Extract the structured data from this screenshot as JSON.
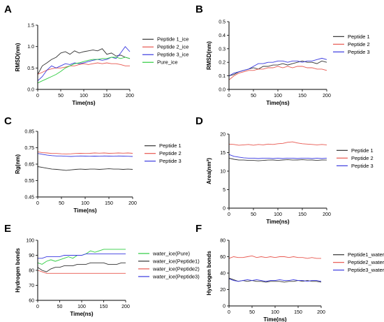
{
  "chart_data": [
    {
      "panel": "A",
      "type": "line",
      "xlabel": "Time(ns)",
      "ylabel": "RMSD(nm)",
      "xlim": [
        0,
        200
      ],
      "ylim": [
        0.0,
        1.5
      ],
      "xticks": [
        "0",
        "50",
        "100",
        "150",
        "200"
      ],
      "yticks": [
        "0.0",
        "0.5",
        "1.0",
        "1.5"
      ],
      "legend_position": "right",
      "series": [
        {
          "name": "Peptide 1_ice",
          "color": "#333333",
          "x": [
            0,
            10,
            20,
            30,
            40,
            50,
            60,
            70,
            80,
            90,
            100,
            110,
            120,
            130,
            140,
            150,
            160,
            170,
            180,
            190,
            200
          ],
          "y": [
            0.35,
            0.55,
            0.62,
            0.7,
            0.75,
            0.85,
            0.88,
            0.82,
            0.9,
            0.85,
            0.88,
            0.9,
            0.92,
            0.9,
            0.95,
            0.82,
            0.85,
            0.78,
            0.8,
            0.75,
            0.72
          ]
        },
        {
          "name": "Peptide 2_ice",
          "color": "#e8574f",
          "x": [
            0,
            10,
            20,
            30,
            40,
            50,
            60,
            70,
            80,
            90,
            100,
            110,
            120,
            130,
            140,
            150,
            160,
            170,
            180,
            190,
            200
          ],
          "y": [
            0.35,
            0.4,
            0.45,
            0.48,
            0.5,
            0.5,
            0.52,
            0.55,
            0.55,
            0.58,
            0.6,
            0.58,
            0.6,
            0.62,
            0.6,
            0.62,
            0.6,
            0.6,
            0.58,
            0.55,
            0.55
          ]
        },
        {
          "name": "Peptide 3_ice",
          "color": "#3a3ae0",
          "x": [
            0,
            10,
            20,
            30,
            40,
            50,
            60,
            70,
            80,
            90,
            100,
            110,
            120,
            130,
            140,
            150,
            160,
            170,
            180,
            190,
            200
          ],
          "y": [
            0.2,
            0.3,
            0.45,
            0.55,
            0.5,
            0.55,
            0.6,
            0.58,
            0.62,
            0.6,
            0.62,
            0.65,
            0.68,
            0.7,
            0.68,
            0.7,
            0.75,
            0.72,
            0.85,
            1.0,
            0.88
          ]
        },
        {
          "name": "Pure_ice",
          "color": "#2ecc40",
          "x": [
            0,
            10,
            20,
            30,
            40,
            50,
            60,
            70,
            80,
            90,
            100,
            110,
            120,
            130,
            140,
            150,
            160,
            170,
            180,
            190,
            200
          ],
          "y": [
            0.15,
            0.2,
            0.25,
            0.3,
            0.35,
            0.42,
            0.5,
            0.55,
            0.6,
            0.62,
            0.65,
            0.68,
            0.7,
            0.7,
            0.72,
            0.72,
            0.75,
            0.75,
            0.72,
            0.75,
            0.72
          ]
        }
      ]
    },
    {
      "panel": "B",
      "type": "line",
      "xlabel": "Time(ns)",
      "ylabel": "RMSD(nm)",
      "xlim": [
        0,
        200
      ],
      "ylim": [
        0.0,
        0.5
      ],
      "xticks": [
        "0",
        "50",
        "100",
        "150",
        "200"
      ],
      "yticks": [
        "0.0",
        "0.1",
        "0.2",
        "0.3",
        "0.4",
        "0.5"
      ],
      "legend_position": "right",
      "series": [
        {
          "name": "Peptide 1",
          "color": "#333333",
          "x": [
            0,
            10,
            20,
            30,
            40,
            50,
            60,
            70,
            80,
            90,
            100,
            110,
            120,
            130,
            140,
            150,
            160,
            170,
            180,
            190,
            200
          ],
          "y": [
            0.1,
            0.11,
            0.13,
            0.14,
            0.15,
            0.16,
            0.15,
            0.17,
            0.17,
            0.18,
            0.18,
            0.19,
            0.18,
            0.19,
            0.2,
            0.21,
            0.2,
            0.2,
            0.19,
            0.21,
            0.2
          ]
        },
        {
          "name": "Peptide 2",
          "color": "#e8574f",
          "x": [
            0,
            10,
            20,
            30,
            40,
            50,
            60,
            70,
            80,
            90,
            100,
            110,
            120,
            130,
            140,
            150,
            160,
            170,
            180,
            190,
            200
          ],
          "y": [
            0.07,
            0.1,
            0.12,
            0.13,
            0.14,
            0.14,
            0.15,
            0.15,
            0.16,
            0.16,
            0.17,
            0.16,
            0.17,
            0.16,
            0.17,
            0.17,
            0.16,
            0.16,
            0.15,
            0.15,
            0.14
          ]
        },
        {
          "name": "Peptide 3",
          "color": "#3a3ae0",
          "x": [
            0,
            10,
            20,
            30,
            40,
            50,
            60,
            70,
            80,
            90,
            100,
            110,
            120,
            130,
            140,
            150,
            160,
            170,
            180,
            190,
            200
          ],
          "y": [
            0.1,
            0.12,
            0.13,
            0.14,
            0.15,
            0.17,
            0.19,
            0.19,
            0.2,
            0.2,
            0.21,
            0.21,
            0.2,
            0.21,
            0.21,
            0.2,
            0.21,
            0.21,
            0.22,
            0.23,
            0.22
          ]
        }
      ]
    },
    {
      "panel": "C",
      "type": "line",
      "xlabel": "Time(ns)",
      "ylabel": "Rg(nm)",
      "xlim": [
        0,
        200
      ],
      "ylim": [
        0.45,
        0.85
      ],
      "xticks": [
        "0",
        "50",
        "100",
        "150",
        "200"
      ],
      "yticks": [
        "0.45",
        "0.55",
        "0.65",
        "0.75",
        "0.85"
      ],
      "legend_position": "right",
      "series": [
        {
          "name": "Peptide 1",
          "color": "#333333",
          "x": [
            0,
            10,
            20,
            30,
            40,
            50,
            60,
            70,
            80,
            90,
            100,
            110,
            120,
            130,
            140,
            150,
            160,
            170,
            180,
            190,
            200
          ],
          "y": [
            0.635,
            0.63,
            0.625,
            0.62,
            0.618,
            0.615,
            0.612,
            0.615,
            0.618,
            0.62,
            0.618,
            0.62,
            0.62,
            0.618,
            0.62,
            0.622,
            0.62,
            0.62,
            0.618,
            0.62,
            0.618
          ]
        },
        {
          "name": "Peptide 2",
          "color": "#e8574f",
          "x": [
            0,
            10,
            20,
            30,
            40,
            50,
            60,
            70,
            80,
            90,
            100,
            110,
            120,
            130,
            140,
            150,
            160,
            170,
            180,
            190,
            200
          ],
          "y": [
            0.725,
            0.72,
            0.718,
            0.715,
            0.715,
            0.713,
            0.712,
            0.713,
            0.715,
            0.716,
            0.715,
            0.716,
            0.718,
            0.717,
            0.718,
            0.716,
            0.717,
            0.718,
            0.717,
            0.718,
            0.716
          ]
        },
        {
          "name": "Peptide 3",
          "color": "#3a3ae0",
          "x": [
            0,
            10,
            20,
            30,
            40,
            50,
            60,
            70,
            80,
            90,
            100,
            110,
            120,
            130,
            140,
            150,
            160,
            170,
            180,
            190,
            200
          ],
          "y": [
            0.715,
            0.71,
            0.705,
            0.702,
            0.7,
            0.7,
            0.698,
            0.697,
            0.698,
            0.7,
            0.699,
            0.698,
            0.699,
            0.698,
            0.7,
            0.699,
            0.698,
            0.7,
            0.699,
            0.698,
            0.697
          ]
        }
      ]
    },
    {
      "panel": "D",
      "type": "line",
      "xlabel": "Time(ns)",
      "ylabel": "Area(nm²)",
      "xlim": [
        0,
        200
      ],
      "ylim": [
        0,
        20
      ],
      "xticks": [
        "0",
        "50",
        "100",
        "150",
        "200"
      ],
      "yticks": [
        "0",
        "5",
        "10",
        "15",
        "20"
      ],
      "legend_position": "right",
      "series": [
        {
          "name": "Peptide 1",
          "color": "#333333",
          "x": [
            0,
            10,
            20,
            30,
            40,
            50,
            60,
            70,
            80,
            90,
            100,
            110,
            120,
            130,
            140,
            150,
            160,
            170,
            180,
            190,
            200
          ],
          "y": [
            13.5,
            13.2,
            13.0,
            13.0,
            12.9,
            12.9,
            12.8,
            12.9,
            13.0,
            13.0,
            12.9,
            13.0,
            13.1,
            13.0,
            13.0,
            13.1,
            13.0,
            13.0,
            12.9,
            13.0,
            13.0
          ]
        },
        {
          "name": "Peptide 2",
          "color": "#e8574f",
          "x": [
            0,
            10,
            20,
            30,
            40,
            50,
            60,
            70,
            80,
            90,
            100,
            110,
            120,
            130,
            140,
            150,
            160,
            170,
            180,
            190,
            200
          ],
          "y": [
            17.3,
            17.2,
            17.0,
            17.1,
            17.2,
            17.0,
            17.2,
            17.1,
            17.3,
            17.2,
            17.4,
            17.5,
            17.8,
            17.9,
            17.6,
            17.4,
            17.3,
            17.2,
            17.1,
            17.2,
            17.1
          ]
        },
        {
          "name": "Peptide 3",
          "color": "#3a3ae0",
          "x": [
            0,
            10,
            20,
            30,
            40,
            50,
            60,
            70,
            80,
            90,
            100,
            110,
            120,
            130,
            140,
            150,
            160,
            170,
            180,
            190,
            200
          ],
          "y": [
            14.5,
            14.0,
            13.8,
            13.6,
            13.5,
            13.5,
            13.4,
            13.5,
            13.5,
            13.4,
            13.5,
            13.4,
            13.5,
            13.5,
            13.4,
            13.5,
            13.5,
            13.4,
            13.5,
            13.4,
            13.5
          ]
        }
      ]
    },
    {
      "panel": "E",
      "type": "line",
      "xlabel": "Time(ns)",
      "ylabel": "Hydrogen bonds",
      "xlim": [
        0,
        200
      ],
      "ylim": [
        60,
        100
      ],
      "xticks": [
        "0",
        "50",
        "100",
        "150",
        "200"
      ],
      "yticks": [
        "60",
        "70",
        "80",
        "90",
        "100"
      ],
      "legend_position": "right",
      "series": [
        {
          "name": "water_ice(Pure)",
          "color": "#2ecc40",
          "x": [
            0,
            10,
            20,
            30,
            40,
            50,
            60,
            70,
            80,
            90,
            100,
            110,
            120,
            130,
            140,
            150,
            160,
            170,
            180,
            190,
            200
          ],
          "y": [
            85,
            84,
            86,
            87,
            86,
            87,
            88,
            89,
            88,
            90,
            90,
            91,
            93,
            92,
            93,
            94,
            94,
            94,
            94,
            94,
            94
          ]
        },
        {
          "name": "water_ice(Peptide1)",
          "color": "#333333",
          "x": [
            0,
            10,
            20,
            30,
            40,
            50,
            60,
            70,
            80,
            90,
            100,
            110,
            120,
            130,
            140,
            150,
            160,
            170,
            180,
            190,
            200
          ],
          "y": [
            82,
            80,
            79,
            81,
            82,
            82,
            83,
            83,
            83,
            84,
            84,
            84,
            85,
            85,
            85,
            85,
            84,
            84,
            84,
            85,
            85
          ]
        },
        {
          "name": "water_ice(Peptide2)",
          "color": "#e8574f",
          "x": [
            0,
            10,
            20,
            30,
            40,
            50,
            60,
            70,
            80,
            90,
            100,
            110,
            120,
            130,
            140,
            150,
            160,
            170,
            180,
            190,
            200
          ],
          "y": [
            80,
            79,
            78,
            78,
            78,
            78,
            78,
            78,
            78,
            78,
            78,
            78,
            78,
            78,
            78,
            78,
            78,
            78,
            78,
            78,
            78
          ]
        },
        {
          "name": "water_ice(Peptide3)",
          "color": "#3a3ae0",
          "x": [
            0,
            10,
            20,
            30,
            40,
            50,
            60,
            70,
            80,
            90,
            100,
            110,
            120,
            130,
            140,
            150,
            160,
            170,
            180,
            190,
            200
          ],
          "y": [
            88,
            88,
            89,
            89,
            89,
            89,
            90,
            90,
            90,
            90,
            90,
            91,
            91,
            91,
            91,
            91,
            91,
            91,
            91,
            91,
            91
          ]
        }
      ]
    },
    {
      "panel": "F",
      "type": "line",
      "xlabel": "Time(ns)",
      "ylabel": "Hydrogen bonds",
      "xlim": [
        0,
        200
      ],
      "ylim": [
        0,
        80
      ],
      "xticks": [
        "0",
        "50",
        "100",
        "150",
        "200"
      ],
      "yticks": [
        "0",
        "20",
        "40",
        "60",
        "80"
      ],
      "legend_position": "right",
      "series": [
        {
          "name": "Peptide1_water",
          "color": "#333333",
          "x": [
            0,
            10,
            20,
            30,
            40,
            50,
            60,
            70,
            80,
            90,
            100,
            110,
            120,
            130,
            140,
            150,
            160,
            170,
            180,
            190,
            200
          ],
          "y": [
            34,
            32,
            30,
            31,
            30,
            31,
            30,
            30,
            29,
            30,
            30,
            30,
            29,
            30,
            30,
            31,
            30,
            31,
            30,
            30,
            29
          ]
        },
        {
          "name": "Peptide2_water",
          "color": "#e8574f",
          "x": [
            0,
            10,
            20,
            30,
            40,
            50,
            60,
            70,
            80,
            90,
            100,
            110,
            120,
            130,
            140,
            150,
            160,
            170,
            180,
            190,
            200
          ],
          "y": [
            58,
            60,
            59,
            59,
            60,
            61,
            59,
            60,
            59,
            60,
            59,
            60,
            60,
            59,
            60,
            59,
            59,
            58,
            59,
            58,
            58
          ]
        },
        {
          "name": "Peptide3_water",
          "color": "#3a3ae0",
          "x": [
            0,
            10,
            20,
            30,
            40,
            50,
            60,
            70,
            80,
            90,
            100,
            110,
            120,
            130,
            140,
            150,
            160,
            170,
            180,
            190,
            200
          ],
          "y": [
            33,
            31,
            30,
            31,
            32,
            31,
            32,
            31,
            30,
            31,
            31,
            32,
            31,
            31,
            32,
            31,
            31,
            30,
            31,
            31,
            30
          ]
        }
      ]
    }
  ]
}
